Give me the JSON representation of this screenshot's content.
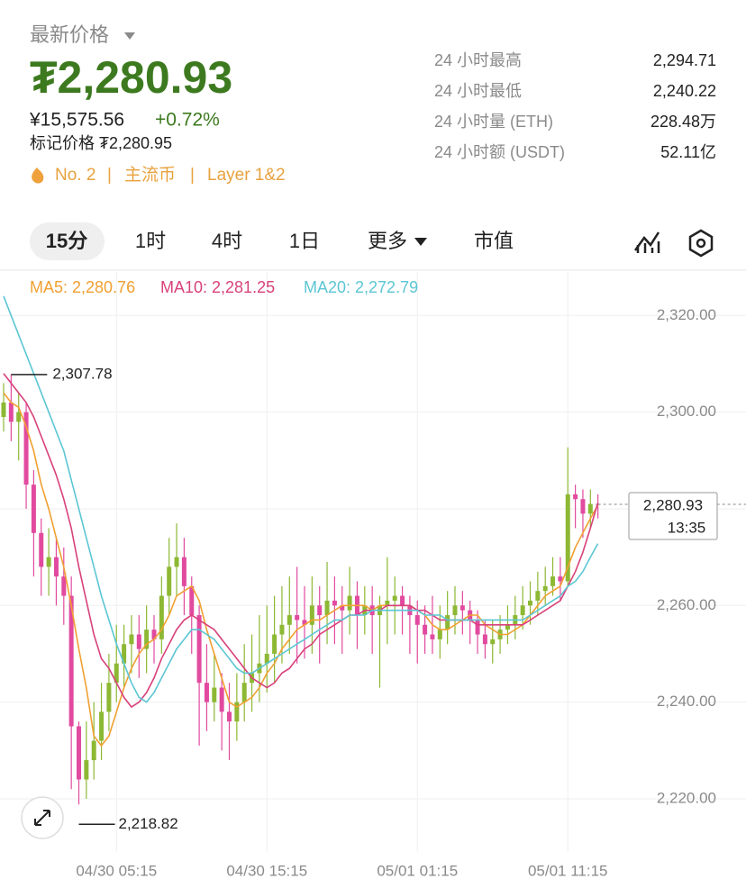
{
  "header": {
    "title": "最新价格",
    "price": "₮2,280.93",
    "fiat": "¥15,575.56",
    "change": "+0.72%",
    "mark_price": "标记价格 ₮2,280.95",
    "tags": [
      "No. 2",
      "主流币",
      "Layer 1&2"
    ]
  },
  "stats": [
    {
      "label": "24 小时最高",
      "value": "2,294.71"
    },
    {
      "label": "24 小时最低",
      "value": "2,240.22"
    },
    {
      "label": "24 小时量 (ETH)",
      "value": "228.48万"
    },
    {
      "label": "24 小时额 (USDT)",
      "value": "52.11亿"
    }
  ],
  "tabs": [
    "15分",
    "1时",
    "4时",
    "1日",
    "更多",
    "市值"
  ],
  "chart_data": {
    "type": "candlestick",
    "categories": [
      null,
      null,
      null,
      null,
      null,
      null,
      null,
      null,
      null,
      null,
      null,
      null,
      null,
      null,
      null,
      "04/30 05:15",
      null,
      null,
      null,
      null,
      null,
      null,
      null,
      null,
      null,
      null,
      null,
      null,
      null,
      null,
      null,
      null,
      null,
      null,
      null,
      "04/30 15:15",
      null,
      null,
      null,
      null,
      null,
      null,
      null,
      null,
      null,
      null,
      null,
      null,
      null,
      null,
      null,
      null,
      null,
      null,
      null,
      "05/01 01:15",
      null,
      null,
      null,
      null,
      null,
      null,
      null,
      null,
      null,
      null,
      null,
      null,
      null,
      null,
      null,
      null,
      null,
      null,
      null,
      "05/01 11:15",
      null,
      null,
      null,
      null
    ],
    "open": [
      2299,
      2302,
      2298,
      2300,
      2285,
      2275,
      2268,
      2270,
      2266,
      2262,
      2235,
      2224,
      2228,
      2232,
      2238,
      2244,
      2248,
      2252,
      2254,
      2251,
      2255,
      2253,
      2262,
      2268,
      2270,
      2264,
      2258,
      2244,
      2240,
      2243,
      2238,
      2236,
      2240,
      2244,
      2246,
      2248,
      2250,
      2254,
      2256,
      2258,
      2257,
      2256,
      2260,
      2258,
      2261,
      2260,
      2259,
      2262,
      2258,
      2260,
      2258,
      2260,
      2261,
      2262,
      2260,
      2258,
      2256,
      2254,
      2253,
      2255,
      2258,
      2260,
      2259,
      2257,
      2254,
      2252,
      2253,
      2255,
      2256,
      2258,
      2260,
      2261,
      2263,
      2264,
      2266,
      2265,
      2283,
      2282,
      2279,
      2281
    ],
    "high": [
      2306,
      2307.78,
      2304,
      2302,
      2288,
      2278,
      2276,
      2274,
      2272,
      2266,
      2236,
      2236,
      2240,
      2244,
      2250,
      2256,
      2256,
      2258,
      2258,
      2260,
      2258,
      2266,
      2274,
      2277,
      2274,
      2266,
      2260,
      2252,
      2250,
      2246,
      2244,
      2246,
      2252,
      2254,
      2258,
      2260,
      2262,
      2264,
      2266,
      2268,
      2264,
      2266,
      2264,
      2269,
      2266,
      2264,
      2268,
      2265,
      2264,
      2264,
      2262,
      2270,
      2266,
      2264,
      2262,
      2261,
      2260,
      2262,
      2260,
      2263,
      2264,
      2263,
      2261,
      2259,
      2257,
      2257,
      2258,
      2260,
      2262,
      2264,
      2265,
      2267,
      2268,
      2270,
      2270,
      2292.7,
      2285,
      2284,
      2284,
      2283
    ],
    "low": [
      2296,
      2294,
      2290,
      2280,
      2266,
      2262,
      2262,
      2260,
      2256,
      2222,
      2218.82,
      2220,
      2224,
      2228,
      2234,
      2240,
      2243,
      2246,
      2245,
      2246,
      2248,
      2250,
      2258,
      2262,
      2258,
      2250,
      2231,
      2234,
      2236,
      2230,
      2228,
      2232,
      2236,
      2238,
      2240,
      2242,
      2244,
      2248,
      2250,
      2248,
      2249,
      2250,
      2248,
      2252,
      2252,
      2250,
      2254,
      2251,
      2254,
      2250,
      2243,
      2252,
      2254,
      2254,
      2250,
      2248,
      2250,
      2250,
      2249,
      2252,
      2254,
      2254,
      2252,
      2250,
      2249,
      2248,
      2250,
      2252,
      2253,
      2255,
      2256,
      2258,
      2260,
      2262,
      2261,
      2264,
      2276,
      2274,
      2276,
      2278
    ],
    "close": [
      2302,
      2298,
      2300,
      2285,
      2275,
      2268,
      2270,
      2266,
      2262,
      2235,
      2224,
      2228,
      2232,
      2238,
      2244,
      2248,
      2252,
      2254,
      2251,
      2255,
      2253,
      2262,
      2268,
      2270,
      2264,
      2258,
      2244,
      2240,
      2243,
      2238,
      2236,
      2240,
      2244,
      2246,
      2248,
      2250,
      2254,
      2256,
      2258,
      2257,
      2256,
      2260,
      2258,
      2261,
      2260,
      2259,
      2262,
      2258,
      2260,
      2258,
      2260,
      2261,
      2262,
      2260,
      2258,
      2256,
      2254,
      2253,
      2255,
      2258,
      2260,
      2259,
      2257,
      2254,
      2252,
      2253,
      2255,
      2256,
      2258,
      2260,
      2261,
      2263,
      2264,
      2266,
      2265,
      2283,
      2282,
      2279,
      2281,
      2280.93
    ],
    "up_color": "#8db834",
    "down_color": "#e14a9f",
    "series": [
      {
        "name": "MA5: 2,280.76",
        "color": "#f0a032",
        "values": [
          2304,
          2302,
          2301,
          2297,
          2292,
          2285,
          2280,
          2274,
          2268,
          2260,
          2251,
          2243,
          2233,
          2231,
          2233,
          2238,
          2243,
          2247,
          2250,
          2252,
          2253,
          2255,
          2258,
          2262,
          2263,
          2264,
          2261,
          2255,
          2250,
          2245,
          2240,
          2239,
          2240,
          2241,
          2243,
          2246,
          2248,
          2251,
          2253,
          2255,
          2256,
          2257,
          2257,
          2258,
          2259,
          2260,
          2260,
          2260,
          2260,
          2259,
          2260,
          2260,
          2260,
          2260,
          2260,
          2259,
          2258,
          2256,
          2255,
          2255,
          2256,
          2257,
          2258,
          2258,
          2256,
          2255,
          2254,
          2254,
          2255,
          2256,
          2258,
          2260,
          2262,
          2263,
          2264,
          2268,
          2272,
          2275,
          2278,
          2280.76
        ]
      },
      {
        "name": "MA10: 2,281.25",
        "color": "#d8417b",
        "values": [
          2308,
          2306,
          2304,
          2302,
          2299,
          2295,
          2291,
          2287,
          2282,
          2276,
          2268,
          2261,
          2254,
          2249,
          2247,
          2244,
          2241,
          2239,
          2240,
          2242,
          2245,
          2249,
          2252,
          2255,
          2257,
          2258,
          2257,
          2256,
          2255,
          2253,
          2251,
          2249,
          2247,
          2245,
          2244,
          2243,
          2244,
          2246,
          2247,
          2249,
          2251,
          2252,
          2254,
          2255,
          2256,
          2257,
          2258,
          2258,
          2259,
          2259,
          2259,
          2260,
          2260,
          2260,
          2260,
          2259,
          2259,
          2258,
          2257,
          2257,
          2257,
          2257,
          2257,
          2256,
          2256,
          2256,
          2256,
          2256,
          2256,
          2256,
          2257,
          2258,
          2259,
          2260,
          2261,
          2264,
          2267,
          2271,
          2276,
          2281.25
        ]
      },
      {
        "name": "MA20: 2,272.79",
        "color": "#5cc6d4",
        "values": [
          2324,
          2320,
          2316,
          2312,
          2308,
          2304,
          2300,
          2296,
          2292,
          2286,
          2280,
          2274,
          2268,
          2262,
          2257,
          2252,
          2248,
          2244,
          2241,
          2240,
          2242,
          2245,
          2248,
          2251,
          2253,
          2255,
          2255,
          2254,
          2253,
          2251,
          2249,
          2247,
          2246,
          2246,
          2247,
          2248,
          2249,
          2250,
          2251,
          2252,
          2253,
          2254,
          2255,
          2256,
          2257,
          2257,
          2258,
          2258,
          2258,
          2259,
          2259,
          2259,
          2259,
          2259,
          2259,
          2259,
          2258,
          2258,
          2258,
          2257,
          2257,
          2257,
          2257,
          2257,
          2257,
          2257,
          2257,
          2257,
          2257,
          2257,
          2258,
          2259,
          2260,
          2261,
          2262,
          2264,
          2265,
          2267,
          2270,
          2272.79
        ]
      }
    ],
    "ylim": [
      2209,
      2329
    ],
    "yticks": [
      {
        "value": 2220,
        "label": "2,220.00"
      },
      {
        "value": 2240,
        "label": "2,240.00"
      },
      {
        "value": 2260,
        "label": "2,260.00"
      },
      {
        "value": 2280,
        "label": "2,280.00"
      },
      {
        "value": 2300,
        "label": "2,300.00"
      },
      {
        "value": 2320,
        "label": "2,320.00"
      }
    ],
    "grid": true,
    "max_marker": {
      "value": 2307.78,
      "label": "2,307.78"
    },
    "min_marker": {
      "value": 2218.82,
      "label": "2,218.82"
    },
    "last_price": {
      "value": 2280.93,
      "label": "2,280.93"
    },
    "countdown": "13:35"
  }
}
